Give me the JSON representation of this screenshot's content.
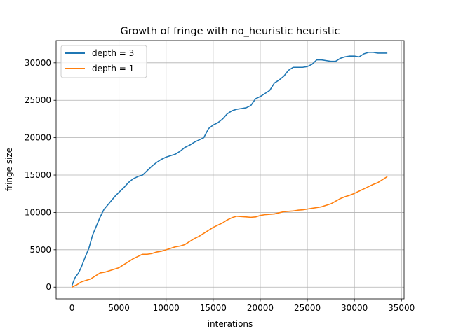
{
  "chart_data": {
    "type": "line",
    "title": "Growth of fringe with no_heuristic heuristic",
    "xlabel": "interations",
    "ylabel": "fringe size",
    "xlim": [
      -1680,
      35280
    ],
    "ylim": [
      -1570,
      32980
    ],
    "xticks": [
      0,
      5000,
      10000,
      15000,
      20000,
      25000,
      30000,
      35000
    ],
    "yticks": [
      0,
      5000,
      10000,
      15000,
      20000,
      25000,
      30000
    ],
    "grid": true,
    "legend_position": "top-left",
    "series": [
      {
        "name": "depth = 3",
        "color": "#1f77b4",
        "x": [
          0,
          300,
          700,
          1000,
          1400,
          1800,
          2200,
          2600,
          3000,
          3400,
          3800,
          4200,
          4600,
          5000,
          5500,
          6000,
          6500,
          7000,
          7500,
          8000,
          8500,
          9000,
          9500,
          10000,
          10500,
          11000,
          11500,
          12000,
          12500,
          13000,
          13500,
          14000,
          14500,
          15000,
          15500,
          16000,
          16500,
          17000,
          17500,
          18000,
          18500,
          19000,
          19500,
          20000,
          20500,
          21000,
          21500,
          22000,
          22500,
          23000,
          23500,
          24000,
          24500,
          25000,
          25500,
          26000,
          26500,
          27000,
          27500,
          28000,
          28500,
          29000,
          29500,
          30000,
          30500,
          31000,
          31500,
          32000,
          32500,
          33000,
          33500
        ],
        "values": [
          200,
          1200,
          1900,
          2700,
          4000,
          5200,
          7000,
          8200,
          9400,
          10400,
          11000,
          11600,
          12200,
          12700,
          13300,
          14000,
          14500,
          14800,
          15000,
          15600,
          16200,
          16700,
          17100,
          17400,
          17600,
          17800,
          18200,
          18700,
          19000,
          19400,
          19700,
          20000,
          21200,
          21700,
          22000,
          22500,
          23200,
          23600,
          23800,
          23900,
          24000,
          24300,
          25200,
          25500,
          25900,
          26300,
          27300,
          27700,
          28200,
          29000,
          29400,
          29400,
          29400,
          29500,
          29800,
          30400,
          30400,
          30300,
          30200,
          30200,
          30600,
          30800,
          30900,
          30900,
          30800,
          31200,
          31400,
          31400,
          31300,
          31300,
          31300
        ]
      },
      {
        "name": "depth = 1",
        "color": "#ff7f0e",
        "x": [
          0,
          500,
          1000,
          1500,
          2000,
          2500,
          3000,
          3500,
          4000,
          4500,
          5000,
          5500,
          6000,
          6500,
          7000,
          7500,
          8000,
          8500,
          9000,
          9500,
          10000,
          10500,
          11000,
          11500,
          12000,
          12500,
          13000,
          13500,
          14000,
          14500,
          15000,
          15500,
          16000,
          16500,
          17000,
          17500,
          18000,
          18500,
          19000,
          19500,
          20000,
          20500,
          21000,
          21500,
          22000,
          22500,
          23000,
          23500,
          24000,
          24500,
          25000,
          25500,
          26000,
          26500,
          27000,
          27500,
          28000,
          28500,
          29000,
          29500,
          30000,
          30500,
          31000,
          31500,
          32000,
          32500,
          33000,
          33500
        ],
        "values": [
          0,
          300,
          700,
          900,
          1100,
          1500,
          1900,
          2000,
          2200,
          2400,
          2600,
          3000,
          3400,
          3800,
          4100,
          4400,
          4400,
          4500,
          4700,
          4800,
          5000,
          5200,
          5400,
          5500,
          5700,
          6100,
          6500,
          6800,
          7200,
          7600,
          8000,
          8300,
          8600,
          9000,
          9300,
          9500,
          9450,
          9400,
          9350,
          9400,
          9600,
          9700,
          9750,
          9800,
          9950,
          10100,
          10150,
          10200,
          10300,
          10350,
          10450,
          10550,
          10650,
          10750,
          10950,
          11150,
          11500,
          11850,
          12100,
          12300,
          12550,
          12850,
          13150,
          13450,
          13750,
          14000,
          14400,
          14800
        ]
      }
    ]
  }
}
